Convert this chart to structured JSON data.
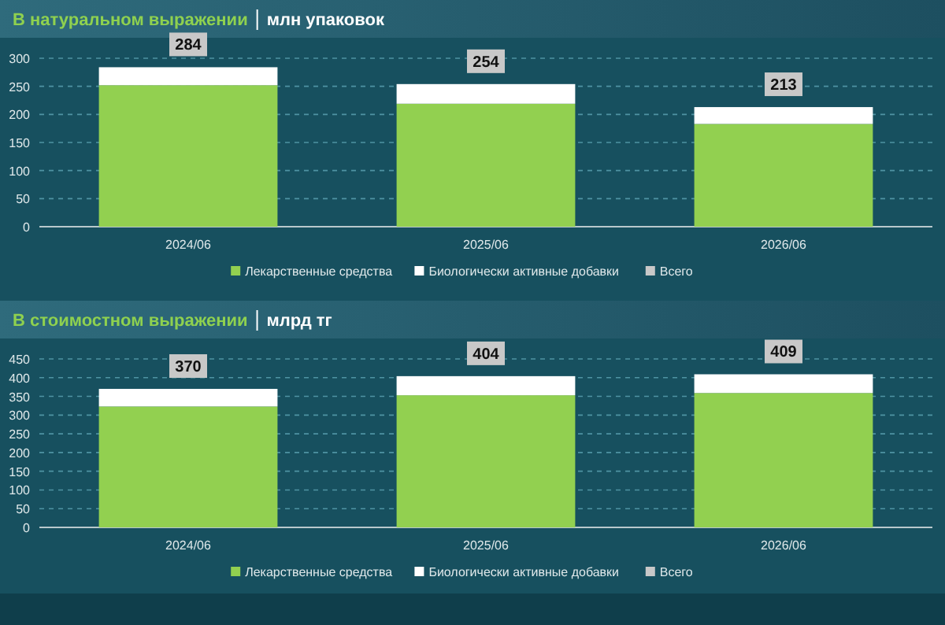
{
  "chart_data": [
    {
      "type": "bar",
      "stacked": true,
      "title": "В натуральном выражении",
      "subtitle": "млн упаковок",
      "categories": [
        "2024/06",
        "2025/06",
        "2026/06"
      ],
      "series": [
        {
          "name": "Лекарственные средства",
          "color": "#92d050",
          "values": [
            252,
            219,
            183
          ]
        },
        {
          "name": "Биологически активные добавки",
          "color": "#ffffff",
          "values": [
            32,
            35,
            30
          ]
        },
        {
          "name": "Всего",
          "color": "#c8c8c8",
          "values": [
            null,
            null,
            null
          ]
        }
      ],
      "totals": [
        "284",
        "254",
        "213"
      ],
      "ylim": [
        0,
        300
      ],
      "yticks": [
        0,
        50,
        100,
        150,
        200,
        250,
        300
      ],
      "grid": "y",
      "legend": "bottom"
    },
    {
      "type": "bar",
      "stacked": true,
      "title": "В стоимостном выражении",
      "subtitle": "млрд тг",
      "categories": [
        "2024/06",
        "2025/06",
        "2026/06"
      ],
      "series": [
        {
          "name": "Лекарственные средства",
          "color": "#92d050",
          "values": [
            323,
            353,
            359
          ]
        },
        {
          "name": "Биологически активные добавки",
          "color": "#ffffff",
          "values": [
            47,
            51,
            50
          ]
        },
        {
          "name": "Всего",
          "color": "#c8c8c8",
          "values": [
            null,
            null,
            null
          ]
        }
      ],
      "totals": [
        "370",
        "404",
        "409"
      ],
      "ylim": [
        0,
        450
      ],
      "yticks": [
        0,
        50,
        100,
        150,
        200,
        250,
        300,
        350,
        400,
        450
      ],
      "grid": "y",
      "legend": "bottom"
    }
  ]
}
